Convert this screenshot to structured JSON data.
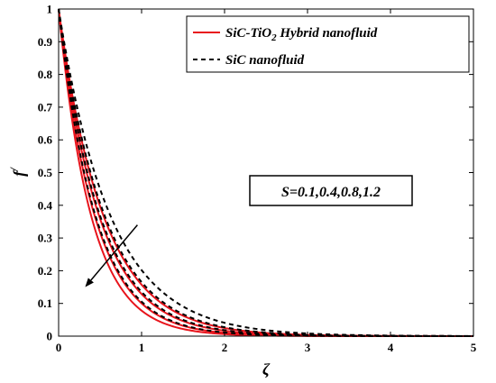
{
  "chart_data": {
    "type": "line",
    "title": "",
    "xlabel": "ζ",
    "ylabel_base": "f",
    "ylabel_sup": "/",
    "xlim": [
      0,
      5
    ],
    "ylim": [
      0,
      1
    ],
    "x_ticks": [
      "0",
      "1",
      "2",
      "3",
      "4",
      "5"
    ],
    "y_ticks": [
      "0",
      "0.1",
      "0.2",
      "0.3",
      "0.4",
      "0.5",
      "0.6",
      "0.7",
      "0.8",
      "0.9",
      "1"
    ],
    "grid": false,
    "legend_position": "top-right",
    "legend": [
      {
        "parts": [
          {
            "text": "SiC-TiO",
            "sub": false
          },
          {
            "text": "2",
            "sub": true
          },
          {
            "text": " Hybrid nanofluid",
            "sub": false
          }
        ],
        "color": "#e8141c",
        "dash": "solid"
      },
      {
        "parts": [
          {
            "text": "SiC nanofluid",
            "sub": false
          }
        ],
        "color": "#000000",
        "dash": "dashed"
      }
    ],
    "annotation": {
      "text": "S=0.1,0.4,0.8,1.2"
    },
    "arrow": {
      "from": [
        0.95,
        0.34
      ],
      "to": [
        0.32,
        0.15
      ]
    },
    "parameter_values": [
      0.1,
      0.4,
      0.8,
      1.2
    ],
    "series": [
      {
        "group": "hybrid",
        "parameter": 0.1,
        "color": "#e8141c",
        "dash": "solid",
        "decay_rate": 1.85
      },
      {
        "group": "hybrid",
        "parameter": 0.4,
        "color": "#e8141c",
        "dash": "solid",
        "decay_rate": 2.05
      },
      {
        "group": "hybrid",
        "parameter": 0.8,
        "color": "#e8141c",
        "dash": "solid",
        "decay_rate": 2.3
      },
      {
        "group": "hybrid",
        "parameter": 1.2,
        "color": "#e8141c",
        "dash": "solid",
        "decay_rate": 2.55
      },
      {
        "group": "nanofluid",
        "parameter": 0.1,
        "color": "#000000",
        "dash": "dashed",
        "decay_rate": 1.6
      },
      {
        "group": "nanofluid",
        "parameter": 0.4,
        "color": "#000000",
        "dash": "dashed",
        "decay_rate": 1.8
      },
      {
        "group": "nanofluid",
        "parameter": 0.8,
        "color": "#000000",
        "dash": "dashed",
        "decay_rate": 2.0
      },
      {
        "group": "nanofluid",
        "parameter": 1.2,
        "color": "#000000",
        "dash": "dashed",
        "decay_rate": 2.25
      }
    ]
  }
}
